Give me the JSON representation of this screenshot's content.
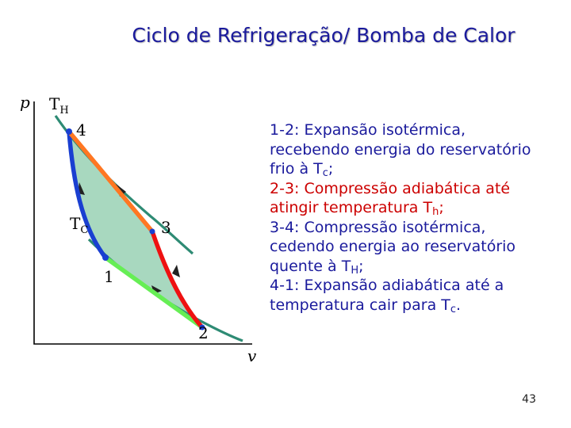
{
  "slide": {
    "title": "Ciclo de Refrigeração/ Bomba de Calor",
    "page_number": "43"
  },
  "diagram": {
    "axes": {
      "y_label": "p",
      "x_label": "v"
    },
    "isotherms": {
      "hot_label_main": "T",
      "hot_label_sub": "H",
      "cold_label_main": "T",
      "cold_label_sub": "C"
    },
    "states": [
      "1",
      "2",
      "3",
      "4"
    ],
    "colors": {
      "axis": "#000000",
      "isotherm": "#2e8b74",
      "enclosed_area": "#a8d8bf",
      "path_4_to_1": "#1a3fd1",
      "path_1_to_2": "#66ee55",
      "path_2_to_3": "#ee1111",
      "path_3_to_4": "#ff7722",
      "state_point": "#1a3fd1"
    }
  },
  "description": [
    {
      "text": "1-2: Expansão isotérmica,\nrecebendo energia do reservatório\nfrio à T",
      "sub": "c",
      "tail": ";"
    },
    {
      "text": "2-3: Compressão adiabática até\natingir temperatura T",
      "sub": "h",
      "tail": ";"
    },
    {
      "text": "3-4: Compressão isotérmica,\ncedendo energia ao reservatório\nquente à T",
      "sub": "H",
      "tail": ";"
    },
    {
      "text": "4-1: Expansão adiabática até a\ntemperatura cair para T",
      "sub": "c",
      "tail": "."
    }
  ]
}
